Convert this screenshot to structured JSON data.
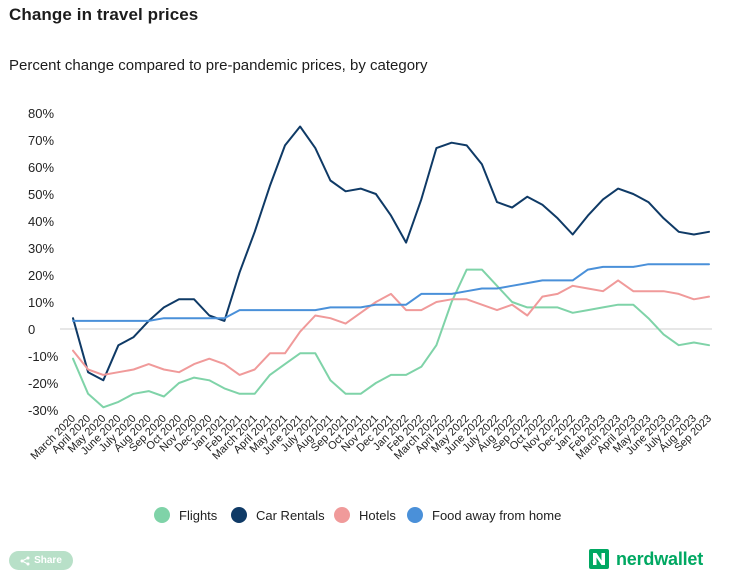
{
  "header": {
    "title": "Change in travel prices",
    "subtitle": "Percent change compared to pre-pandemic prices, by category"
  },
  "footer": {
    "share_label": "Share",
    "brand_name": "nerdwallet"
  },
  "colors": {
    "Flights": "#7fd3a8",
    "Car Rentals": "#0f3a66",
    "Hotels": "#f09a9a",
    "Food away from home": "#4a90d9",
    "brand": "#00a862"
  },
  "chart_data": {
    "type": "line",
    "title": "Change in travel prices",
    "subtitle": "Percent change compared to pre-pandemic prices, by category",
    "xlabel": "",
    "ylabel": "",
    "ylim": [
      -30,
      80
    ],
    "yticks": [
      "80%",
      "70%",
      "60%",
      "50%",
      "40%",
      "30%",
      "20%",
      "10%",
      "0",
      "-10%",
      "-20%",
      "-30%"
    ],
    "ytick_values": [
      80,
      70,
      60,
      50,
      40,
      30,
      20,
      10,
      0,
      -10,
      -20,
      -30
    ],
    "legend_position": "bottom-center",
    "categories": [
      "March 2020",
      "April 2020",
      "May 2020",
      "June 2020",
      "July 2020",
      "Aug 2020",
      "Sep 2020",
      "Oct 2020",
      "Nov 2020",
      "Dec 2020",
      "Jan 2021",
      "Feb 2021",
      "March 2021",
      "April 2021",
      "May 2021",
      "June 2021",
      "July 2021",
      "Aug 2021",
      "Sep 2021",
      "Oct 2021",
      "Nov 2021",
      "Dec 2021",
      "Jan 2022",
      "Feb 2022",
      "March 2022",
      "April 2022",
      "May 2022",
      "June 2022",
      "July 2022",
      "Aug 2022",
      "Sep 2022",
      "Oct 2022",
      "Nov 2022",
      "Dec 2022",
      "Jan 2023",
      "Feb 2023",
      "March 2023",
      "April 2023",
      "May 2023",
      "June 2023",
      "July 2023",
      "Aug 2023",
      "Sep 2023"
    ],
    "series": [
      {
        "name": "Flights",
        "values": [
          -11,
          -24,
          -29,
          -27,
          -24,
          -23,
          -25,
          -20,
          -18,
          -19,
          -22,
          -24,
          -24,
          -17,
          -13,
          -9,
          -9,
          -19,
          -24,
          -24,
          -20,
          -17,
          -17,
          -14,
          -6,
          10,
          22,
          22,
          16,
          10,
          8,
          8,
          8,
          6,
          7,
          8,
          9,
          9,
          4,
          -2,
          -6,
          -5,
          -6
        ]
      },
      {
        "name": "Car Rentals",
        "values": [
          4,
          -16,
          -19,
          -6,
          -3,
          3,
          8,
          11,
          11,
          5,
          3,
          21,
          36,
          53,
          68,
          75,
          67,
          55,
          51,
          52,
          50,
          42,
          32,
          48,
          67,
          69,
          68,
          61,
          47,
          45,
          49,
          46,
          41,
          35,
          42,
          48,
          52,
          50,
          47,
          41,
          36,
          35,
          36
        ]
      },
      {
        "name": "Hotels",
        "values": [
          -8,
          -15,
          -17,
          -16,
          -15,
          -13,
          -15,
          -16,
          -13,
          -11,
          -13,
          -17,
          -15,
          -9,
          -9,
          -1,
          5,
          4,
          2,
          6,
          10,
          13,
          7,
          7,
          10,
          11,
          11,
          9,
          7,
          9,
          5,
          12,
          13,
          16,
          15,
          14,
          18,
          14,
          14,
          14,
          13,
          11,
          12
        ]
      },
      {
        "name": "Food away from home",
        "values": [
          3,
          3,
          3,
          3,
          3,
          3,
          4,
          4,
          4,
          4,
          4,
          7,
          7,
          7,
          7,
          7,
          7,
          8,
          8,
          8,
          9,
          9,
          9,
          13,
          13,
          13,
          14,
          15,
          15,
          16,
          17,
          18,
          18,
          18,
          22,
          23,
          23,
          23,
          24,
          24,
          24,
          24,
          24
        ]
      }
    ]
  }
}
